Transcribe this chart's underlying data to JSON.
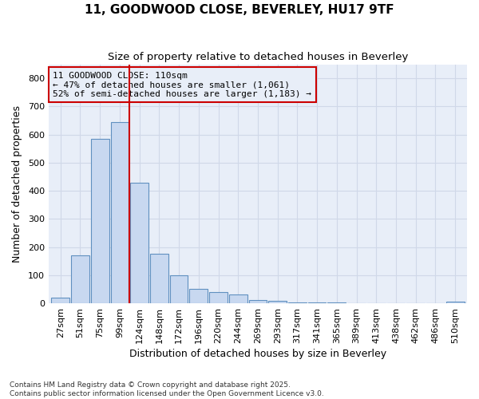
{
  "title1": "11, GOODWOOD CLOSE, BEVERLEY, HU17 9TF",
  "title2": "Size of property relative to detached houses in Beverley",
  "xlabel": "Distribution of detached houses by size in Beverley",
  "ylabel": "Number of detached properties",
  "categories": [
    "27sqm",
    "51sqm",
    "75sqm",
    "99sqm",
    "124sqm",
    "148sqm",
    "172sqm",
    "196sqm",
    "220sqm",
    "244sqm",
    "269sqm",
    "293sqm",
    "317sqm",
    "341sqm",
    "365sqm",
    "389sqm",
    "413sqm",
    "438sqm",
    "462sqm",
    "486sqm",
    "510sqm"
  ],
  "values": [
    20,
    170,
    585,
    645,
    430,
    175,
    100,
    52,
    40,
    32,
    12,
    8,
    4,
    3,
    2,
    1,
    1,
    1,
    0,
    0,
    5
  ],
  "bar_color": "#c8d8f0",
  "bar_edge_color": "#6090c0",
  "annotation_line1": "11 GOODWOOD CLOSE: 110sqm",
  "annotation_line2": "← 47% of detached houses are smaller (1,061)",
  "annotation_line3": "52% of semi-detached houses are larger (1,183) →",
  "annotation_box_color": "#cc0000",
  "vline_color": "#cc0000",
  "vline_x": 3.5,
  "ylim": [
    0,
    850
  ],
  "yticks": [
    0,
    100,
    200,
    300,
    400,
    500,
    600,
    700,
    800
  ],
  "grid_color": "#d0d8e8",
  "bg_color": "#ffffff",
  "plot_bg_color": "#e8eef8",
  "footnote1": "Contains HM Land Registry data © Crown copyright and database right 2025.",
  "footnote2": "Contains public sector information licensed under the Open Government Licence v3.0.",
  "title_fontsize": 11,
  "subtitle_fontsize": 9.5,
  "axis_label_fontsize": 9,
  "tick_fontsize": 8,
  "annot_fontsize": 8
}
